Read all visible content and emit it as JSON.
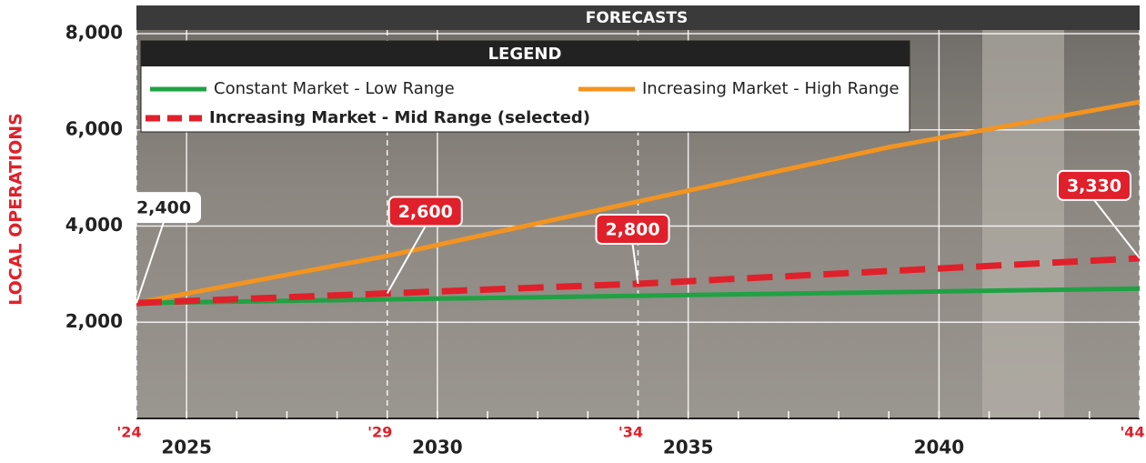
{
  "chart_data": {
    "type": "line",
    "header": "FORECASTS",
    "ylabel": "LOCAL OPERATIONS",
    "legend_title": "LEGEND",
    "xlim": [
      2024,
      2044
    ],
    "ylim": [
      0,
      8000
    ],
    "xticks": [
      2025,
      2030,
      2035,
      2040
    ],
    "short_xticks": [
      {
        "value": 2024,
        "label": "'24"
      },
      {
        "value": 2029,
        "label": "'29"
      },
      {
        "value": 2034,
        "label": "'34"
      },
      {
        "value": 2044,
        "label": "'44"
      }
    ],
    "yticks": [
      {
        "value": 2000,
        "label": "2,000"
      },
      {
        "value": 4000,
        "label": "4,000"
      },
      {
        "value": 6000,
        "label": "6,000"
      },
      {
        "value": 8000,
        "label": "8,000"
      }
    ],
    "grid": true,
    "series": [
      {
        "name": "Constant Market - Low Range",
        "color": "#1fa243",
        "x": [
          2024,
          2044
        ],
        "values": [
          2400,
          2700
        ]
      },
      {
        "name": "Increasing Market - High Range",
        "color": "#f39420",
        "x": [
          2024,
          2029,
          2034,
          2039,
          2044
        ],
        "values": [
          2400,
          3380,
          4510,
          5640,
          6580
        ]
      },
      {
        "name": "Increasing Market - Mid Range (selected)",
        "color": "#e0202a",
        "dashed": true,
        "x": [
          2024,
          2029,
          2034,
          2044
        ],
        "values": [
          2400,
          2600,
          2800,
          3330
        ],
        "value_labels": [
          "2,400",
          "2,600",
          "2,800",
          "3,330"
        ],
        "value_label_colors": [
          "#ffffff",
          "#e0202a",
          "#e0202a",
          "#e0202a"
        ]
      }
    ]
  }
}
